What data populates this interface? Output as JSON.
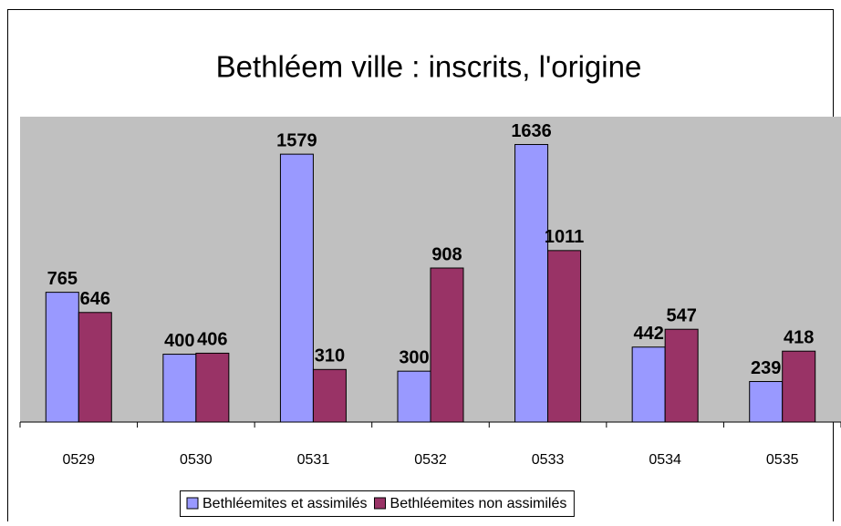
{
  "chart_data": {
    "type": "bar",
    "title": "Bethléem ville : inscrits, l'origine",
    "categories": [
      "0529",
      "0530",
      "0531",
      "0532",
      "0533",
      "0534",
      "0535"
    ],
    "series": [
      {
        "name": "Bethléemites et assimilés",
        "color": "#9999ff",
        "values": [
          765,
          400,
          1579,
          300,
          1636,
          442,
          239
        ]
      },
      {
        "name": "Bethléemites non assimilés",
        "color": "#993366",
        "values": [
          646,
          406,
          310,
          908,
          1011,
          547,
          418
        ]
      }
    ],
    "ylim": [
      0,
      1800
    ],
    "plot_background": "#c0c0c0",
    "legend": "bottom"
  }
}
